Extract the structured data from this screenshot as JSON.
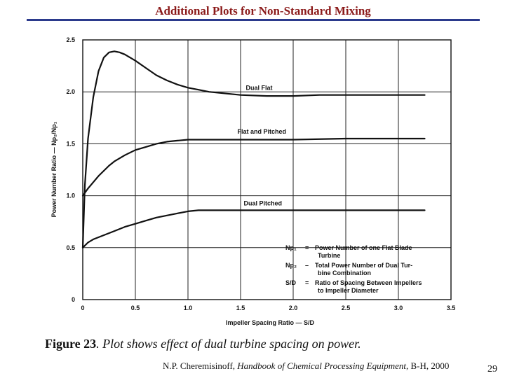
{
  "slide": {
    "title": "Additional Plots for Non-Standard Mixing",
    "caption_label": "Figure 23",
    "caption_text": ". Plot shows effect of dual turbine spacing on power.",
    "citation_prefix": "N.P. Cheremisinoff, ",
    "citation_book": "Handbook of Chemical Processing Equipment",
    "citation_suffix": ", B-H, 2000",
    "page_number": "29"
  },
  "chart_data": {
    "type": "line",
    "title": "",
    "xlabel": "Impeller Spacing Ratio — S/D",
    "ylabel": "Power Number Ratio — Np₂/Np₁",
    "xlim": [
      0,
      3.5
    ],
    "ylim": [
      0,
      2.5
    ],
    "x_ticks": [
      "0",
      "0.5",
      "1.0",
      "1.5",
      "2.0",
      "2.5",
      "3.0",
      "3.5"
    ],
    "y_ticks": [
      "0",
      "0.5",
      "1.0",
      "1.5",
      "2.0",
      "2.5"
    ],
    "grid": true,
    "series": [
      {
        "name": "Dual Flat",
        "x": [
          0,
          0.02,
          0.05,
          0.1,
          0.15,
          0.2,
          0.25,
          0.3,
          0.35,
          0.4,
          0.5,
          0.6,
          0.7,
          0.8,
          0.9,
          1.0,
          1.1,
          1.2,
          1.3,
          1.4,
          1.5,
          1.75,
          2.0,
          2.25,
          2.5,
          2.75,
          3.0,
          3.25
        ],
        "y": [
          0.5,
          1.1,
          1.55,
          1.95,
          2.2,
          2.33,
          2.38,
          2.39,
          2.38,
          2.36,
          2.3,
          2.23,
          2.16,
          2.11,
          2.07,
          2.04,
          2.02,
          2.0,
          1.99,
          1.98,
          1.97,
          1.96,
          1.96,
          1.97,
          1.97,
          1.97,
          1.97,
          1.97
        ]
      },
      {
        "name": "Flat and Pitched",
        "x": [
          0,
          0.05,
          0.1,
          0.15,
          0.2,
          0.25,
          0.3,
          0.4,
          0.5,
          0.6,
          0.7,
          0.8,
          0.9,
          1.0,
          1.25,
          1.5,
          2.0,
          2.5,
          3.0,
          3.25
        ],
        "y": [
          1.0,
          1.07,
          1.13,
          1.19,
          1.24,
          1.29,
          1.33,
          1.39,
          1.44,
          1.47,
          1.5,
          1.52,
          1.53,
          1.54,
          1.54,
          1.54,
          1.54,
          1.55,
          1.55,
          1.55
        ]
      },
      {
        "name": "Dual Pitched",
        "x": [
          0,
          0.05,
          0.1,
          0.2,
          0.3,
          0.4,
          0.5,
          0.6,
          0.7,
          0.8,
          0.9,
          1.0,
          1.1,
          1.2,
          1.3,
          1.5,
          2.0,
          2.5,
          3.0,
          3.25
        ],
        "y": [
          0.5,
          0.55,
          0.58,
          0.62,
          0.66,
          0.7,
          0.73,
          0.76,
          0.79,
          0.81,
          0.83,
          0.85,
          0.86,
          0.86,
          0.86,
          0.86,
          0.86,
          0.86,
          0.86,
          0.86
        ]
      }
    ],
    "legend": {
      "placement": "bottom-right",
      "entries": [
        {
          "symbol": "Np₁",
          "sep": "=",
          "text": [
            "Power Number of one Flat Blade",
            "Turbine"
          ]
        },
        {
          "symbol": "Np₂",
          "sep": "–",
          "text": [
            "Total Power Number of Dual Tur-",
            "bine Combination"
          ]
        },
        {
          "symbol": "S/D",
          "sep": "=",
          "text": [
            "Ratio of Spacing Between Impellers",
            "to Impeller Diameter"
          ]
        }
      ]
    },
    "line_color": "#111111",
    "grid_color": "#222222"
  }
}
